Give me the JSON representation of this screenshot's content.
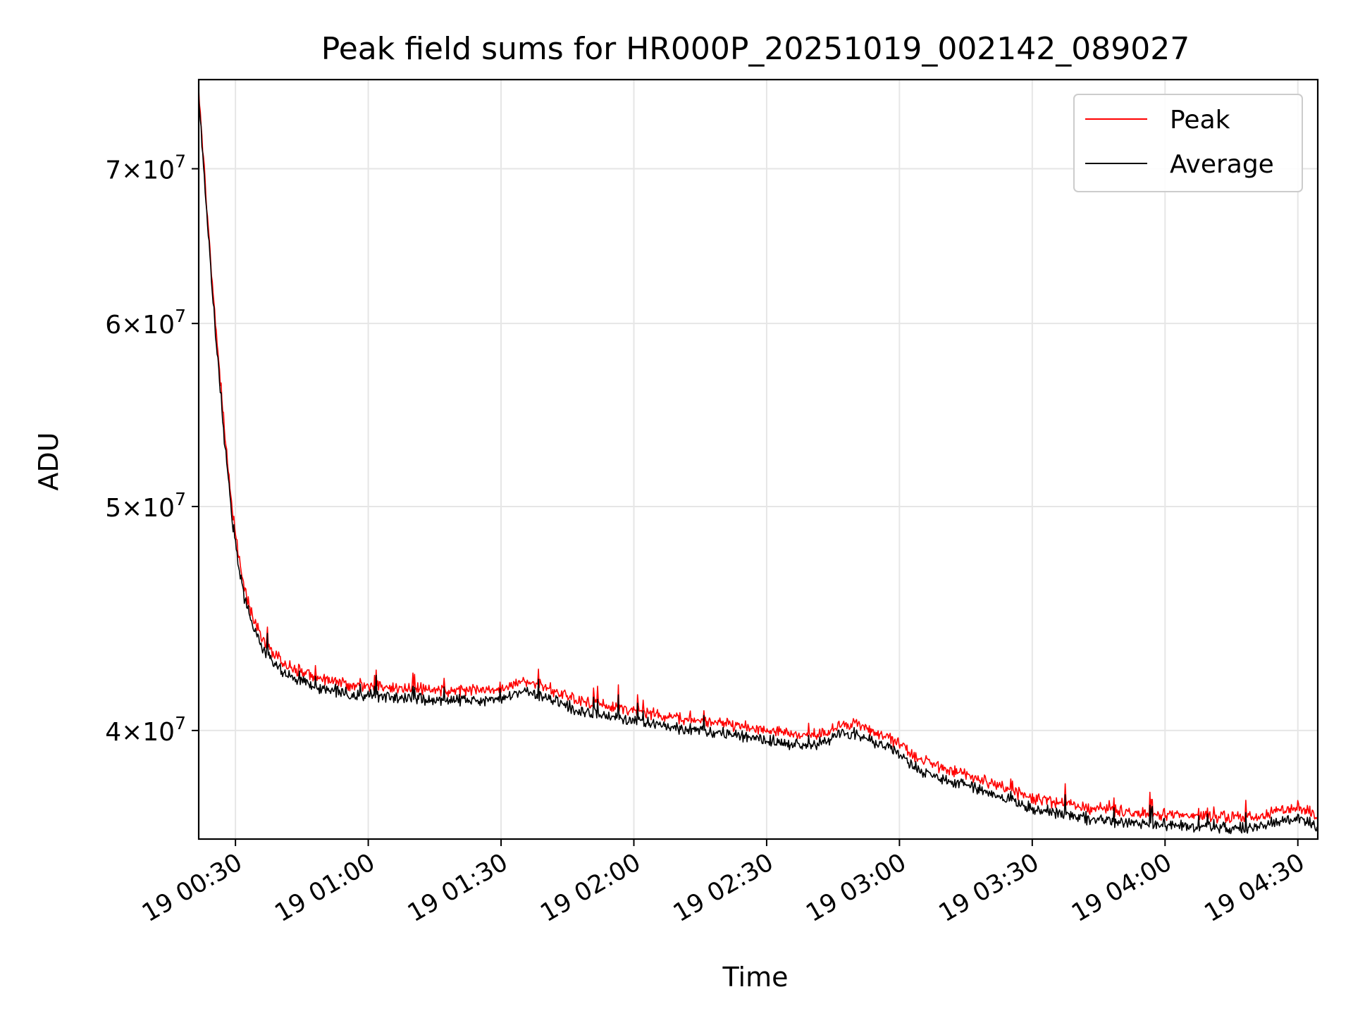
{
  "chart_data": {
    "type": "line",
    "title": "Peak field sums for HR000P_20251019_002142_089027",
    "xlabel": "Time",
    "ylabel": "ADU",
    "y_scale": "log",
    "xlim": [
      "2025-10-19T00:21:42",
      "2025-10-19T04:34:30"
    ],
    "ylim": [
      35900000,
      76500000
    ],
    "x_ticks": [
      {
        "t": "2025-10-19T00:30:00",
        "label": "19 00:30"
      },
      {
        "t": "2025-10-19T01:00:00",
        "label": "19 01:00"
      },
      {
        "t": "2025-10-19T01:30:00",
        "label": "19 01:30"
      },
      {
        "t": "2025-10-19T02:00:00",
        "label": "19 02:00"
      },
      {
        "t": "2025-10-19T02:30:00",
        "label": "19 02:30"
      },
      {
        "t": "2025-10-19T03:00:00",
        "label": "19 03:00"
      },
      {
        "t": "2025-10-19T03:30:00",
        "label": "19 03:30"
      },
      {
        "t": "2025-10-19T04:00:00",
        "label": "19 04:00"
      },
      {
        "t": "2025-10-19T04:30:00",
        "label": "19 04:30"
      }
    ],
    "y_ticks": [
      {
        "value": 40000000,
        "mant": "4",
        "exp": "7"
      },
      {
        "value": 50000000,
        "mant": "5",
        "exp": "7"
      },
      {
        "value": 60000000,
        "mant": "6",
        "exp": "7"
      },
      {
        "value": 70000000,
        "mant": "7",
        "exp": "7"
      }
    ],
    "grid": true,
    "legend_position": "top-right",
    "series": [
      {
        "name": "Peak",
        "color": "#ff0000",
        "x": [
          "2025-10-19T00:21:42",
          "2025-10-19T00:22:30",
          "2025-10-19T00:23:30",
          "2025-10-19T00:24:30",
          "2025-10-19T00:25:30",
          "2025-10-19T00:26:30",
          "2025-10-19T00:27:30",
          "2025-10-19T00:28:30",
          "2025-10-19T00:29:30",
          "2025-10-19T00:30:30",
          "2025-10-19T00:32:00",
          "2025-10-19T00:34:00",
          "2025-10-19T00:36:00",
          "2025-10-19T00:38:00",
          "2025-10-19T00:41:00",
          "2025-10-19T00:45:00",
          "2025-10-19T00:50:00",
          "2025-10-19T00:55:00",
          "2025-10-19T01:00:00",
          "2025-10-19T01:10:00",
          "2025-10-19T01:20:00",
          "2025-10-19T01:30:00",
          "2025-10-19T01:35:00",
          "2025-10-19T01:40:00",
          "2025-10-19T01:45:00",
          "2025-10-19T01:50:00",
          "2025-10-19T02:00:00",
          "2025-10-19T02:10:00",
          "2025-10-19T02:20:00",
          "2025-10-19T02:30:00",
          "2025-10-19T02:40:00",
          "2025-10-19T02:45:00",
          "2025-10-19T02:50:00",
          "2025-10-19T02:55:00",
          "2025-10-19T03:00:00",
          "2025-10-19T03:03:00",
          "2025-10-19T03:08:00",
          "2025-10-19T03:15:00",
          "2025-10-19T03:20:00",
          "2025-10-19T03:25:00",
          "2025-10-19T03:30:00",
          "2025-10-19T03:40:00",
          "2025-10-19T03:50:00",
          "2025-10-19T04:00:00",
          "2025-10-19T04:10:00",
          "2025-10-19T04:20:00",
          "2025-10-19T04:25:00",
          "2025-10-19T04:30:00",
          "2025-10-19T04:34:30"
        ],
        "values": [
          75500000,
          72000000,
          67500000,
          63500000,
          60000000,
          57000000,
          54000000,
          51500000,
          49500000,
          48000000,
          46000000,
          44800000,
          43900000,
          43300000,
          42800000,
          42400000,
          42100000,
          41900000,
          41800000,
          41700000,
          41600000,
          41700000,
          42000000,
          41800000,
          41400000,
          41100000,
          40800000,
          40500000,
          40300000,
          40000000,
          39800000,
          40100000,
          40300000,
          39900000,
          39500000,
          39000000,
          38600000,
          38300000,
          38000000,
          37700000,
          37400000,
          37100000,
          36900000,
          36800000,
          36700000,
          36700000,
          36900000,
          37100000,
          36700000
        ]
      },
      {
        "name": "Average",
        "color": "#000000",
        "x": [
          "2025-10-19T00:21:42",
          "2025-10-19T00:22:30",
          "2025-10-19T00:23:30",
          "2025-10-19T00:24:30",
          "2025-10-19T00:25:30",
          "2025-10-19T00:26:30",
          "2025-10-19T00:27:30",
          "2025-10-19T00:28:30",
          "2025-10-19T00:29:30",
          "2025-10-19T00:30:30",
          "2025-10-19T00:32:00",
          "2025-10-19T00:34:00",
          "2025-10-19T00:36:00",
          "2025-10-19T00:38:00",
          "2025-10-19T00:41:00",
          "2025-10-19T00:45:00",
          "2025-10-19T00:50:00",
          "2025-10-19T00:55:00",
          "2025-10-19T01:00:00",
          "2025-10-19T01:10:00",
          "2025-10-19T01:20:00",
          "2025-10-19T01:30:00",
          "2025-10-19T01:35:00",
          "2025-10-19T01:40:00",
          "2025-10-19T01:45:00",
          "2025-10-19T01:50:00",
          "2025-10-19T02:00:00",
          "2025-10-19T02:10:00",
          "2025-10-19T02:20:00",
          "2025-10-19T02:30:00",
          "2025-10-19T02:40:00",
          "2025-10-19T02:45:00",
          "2025-10-19T02:50:00",
          "2025-10-19T02:55:00",
          "2025-10-19T03:00:00",
          "2025-10-19T03:03:00",
          "2025-10-19T03:08:00",
          "2025-10-19T03:15:00",
          "2025-10-19T03:20:00",
          "2025-10-19T03:25:00",
          "2025-10-19T03:30:00",
          "2025-10-19T03:40:00",
          "2025-10-19T03:50:00",
          "2025-10-19T04:00:00",
          "2025-10-19T04:10:00",
          "2025-10-19T04:20:00",
          "2025-10-19T04:25:00",
          "2025-10-19T04:30:00",
          "2025-10-19T04:34:30"
        ],
        "values": [
          75000000,
          71500000,
          67000000,
          63000000,
          59500000,
          56500000,
          53500000,
          51000000,
          49000000,
          47500000,
          45600000,
          44400000,
          43500000,
          42900000,
          42400000,
          42000000,
          41700000,
          41500000,
          41400000,
          41300000,
          41200000,
          41300000,
          41600000,
          41400000,
          41000000,
          40700000,
          40400000,
          40100000,
          39900000,
          39600000,
          39400000,
          39700000,
          39900000,
          39500000,
          39100000,
          38600000,
          38200000,
          37900000,
          37600000,
          37300000,
          37000000,
          36700000,
          36500000,
          36400000,
          36300000,
          36300000,
          36500000,
          36700000,
          36300000
        ]
      }
    ]
  }
}
